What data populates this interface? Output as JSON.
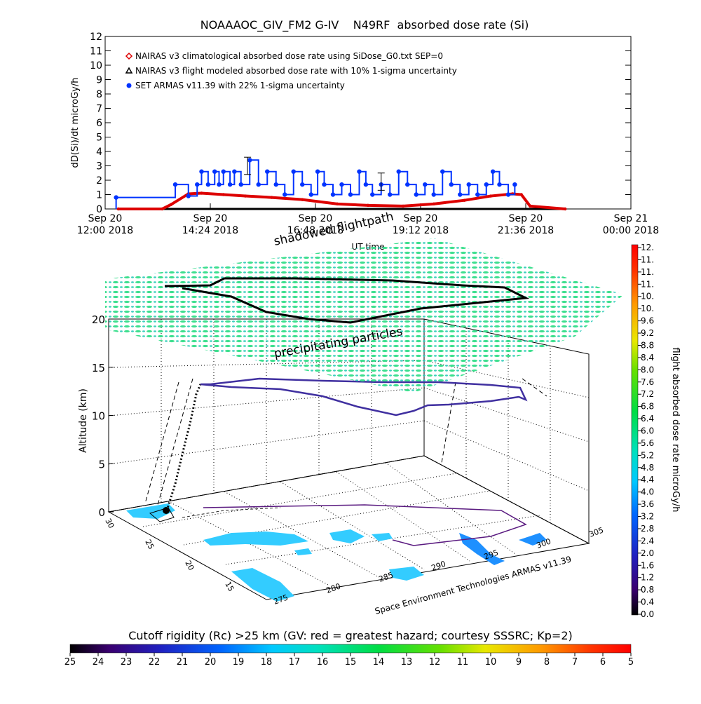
{
  "chart_data": [
    {
      "type": "line",
      "title": "NOAAAOC_GIV_FM2 G-IV    N49RF  absorbed dose rate (Si)",
      "ylabel": "dD(Si)/dt microGy/h",
      "xlabel": "UT time",
      "ylim": [
        0,
        12
      ],
      "yticks": [
        "0",
        "1",
        "2",
        "3",
        "4",
        "5",
        "6",
        "7",
        "8",
        "9",
        "10",
        "11",
        "12"
      ],
      "xlim_hours": [
        12.0,
        24.0
      ],
      "xticks": [
        {
          "hour": 12.0,
          "line1": "Sep 20",
          "line2": "12:00 2018"
        },
        {
          "hour": 14.4,
          "line1": "Sep 20",
          "line2": "14:24 2018"
        },
        {
          "hour": 16.8,
          "line1": "Sep 20",
          "line2": "16:48 2018"
        },
        {
          "hour": 19.2,
          "line1": "Sep 20",
          "line2": "19:12 2018"
        },
        {
          "hour": 21.6,
          "line1": "Sep 20",
          "line2": "21:36 2018"
        },
        {
          "hour": 24.0,
          "line1": "Sep 21",
          "line2": "00:00 2018"
        }
      ],
      "legend": [
        {
          "label": "NAIRAS v3 climatological absorbed dose rate using SiDose_G0.txt SEP=0",
          "symbol": "diamond",
          "color": "#dd0000"
        },
        {
          "label": "NAIRAS v3 flight modeled absorbed dose rate with 10% 1-sigma uncertainty",
          "symbol": "triangle",
          "color": "#000000"
        },
        {
          "label": "SET ARMAS v11.39 with 22% 1-sigma uncertainty",
          "symbol": "dot",
          "color": "#0033ff"
        }
      ],
      "series": [
        {
          "name": "NAIRAS v3 climatological absorbed dose rate using SiDose_G0.txt SEP=0",
          "color": "#dd0000",
          "x": [
            12.3,
            13.3,
            13.5,
            13.9,
            14.2,
            14.7,
            15.2,
            15.8,
            16.5,
            17.3,
            18.0,
            18.8,
            19.5,
            20.2,
            20.8,
            21.3,
            21.5,
            21.7,
            22.5
          ],
          "y": [
            0.0,
            0.0,
            0.3,
            1.05,
            1.1,
            1.0,
            0.9,
            0.8,
            0.65,
            0.35,
            0.25,
            0.2,
            0.35,
            0.6,
            0.9,
            1.05,
            1.0,
            0.2,
            0.0
          ]
        },
        {
          "name": "NAIRAS v3 flight modeled absorbed dose rate with 10% 1-sigma uncertainty",
          "color": "#000000",
          "x": [
            12.3,
            22.5
          ],
          "y": [
            0.0,
            0.0
          ]
        },
        {
          "name": "SET ARMAS v11.39 with 22% 1-sigma uncertainty",
          "color": "#0033ff",
          "x": [
            12.25,
            13.6,
            13.9,
            14.1,
            14.2,
            14.35,
            14.5,
            14.6,
            14.7,
            14.85,
            14.95,
            15.1,
            15.3,
            15.5,
            15.7,
            15.9,
            16.1,
            16.3,
            16.5,
            16.7,
            16.85,
            17.0,
            17.2,
            17.4,
            17.6,
            17.8,
            17.95,
            18.1,
            18.3,
            18.5,
            18.7,
            18.9,
            19.1,
            19.3,
            19.5,
            19.7,
            19.9,
            20.1,
            20.3,
            20.5,
            20.7,
            20.85,
            21.0,
            21.2,
            21.35
          ],
          "y": [
            0.8,
            1.7,
            0.9,
            1.7,
            2.6,
            1.7,
            2.6,
            1.7,
            2.6,
            1.7,
            2.6,
            1.7,
            3.4,
            1.7,
            2.6,
            1.7,
            1.0,
            2.6,
            1.7,
            1.0,
            2.6,
            1.7,
            1.0,
            1.7,
            1.0,
            2.6,
            1.7,
            1.0,
            1.7,
            1.0,
            2.6,
            1.7,
            1.0,
            1.7,
            1.0,
            2.6,
            1.7,
            1.0,
            1.7,
            1.0,
            1.7,
            2.6,
            1.7,
            1.0,
            1.7
          ]
        }
      ],
      "error_bars": [
        {
          "x": 15.25,
          "y": 3.0,
          "err": 0.6
        },
        {
          "x": 18.3,
          "y": 1.9,
          "err": 0.6
        }
      ]
    },
    {
      "type": "3d-surface",
      "zlabel": "Altitude (km)",
      "zlim": [
        0,
        20
      ],
      "zticks": [
        "0",
        "5",
        "10",
        "15",
        "20"
      ],
      "lat_ticks": [
        "30",
        "25",
        "20",
        "15"
      ],
      "lon_ticks": [
        "275",
        "280",
        "285",
        "290",
        "295",
        "300",
        "305"
      ],
      "surface_labels": [
        "shadowed flightpath",
        "precipitating particles"
      ],
      "credit": "Space Environment Technologies ARMAS v11.39",
      "flight_altitude_km": 13.0,
      "colorbar": {
        "label": "flight absorbed dose rate microGy/h",
        "ticks": [
          "0.0",
          "0.4",
          "0.8",
          "1.2",
          "1.6",
          "2.0",
          "2.4",
          "2.8",
          "3.2",
          "3.6",
          "4.0",
          "4.4",
          "4.8",
          "5.2",
          "5.6",
          "6.0",
          "6.4",
          "6.8",
          "7.2",
          "7.6",
          "8.0",
          "8.4",
          "8.8",
          "9.2",
          "9.6",
          "10.",
          "10.",
          "11.",
          "11.",
          "11.",
          "12."
        ]
      },
      "cutoff_bar": {
        "title": "Cutoff rigidity (Rc) >25 km (GV: red = greatest hazard; courtesy SSSRC; Kp=2)",
        "ticks": [
          "25",
          "24",
          "23",
          "22",
          "21",
          "20",
          "19",
          "18",
          "17",
          "16",
          "15",
          "14",
          "13",
          "12",
          "11",
          "10",
          "9",
          "8",
          "7",
          "6",
          "5"
        ]
      }
    }
  ]
}
